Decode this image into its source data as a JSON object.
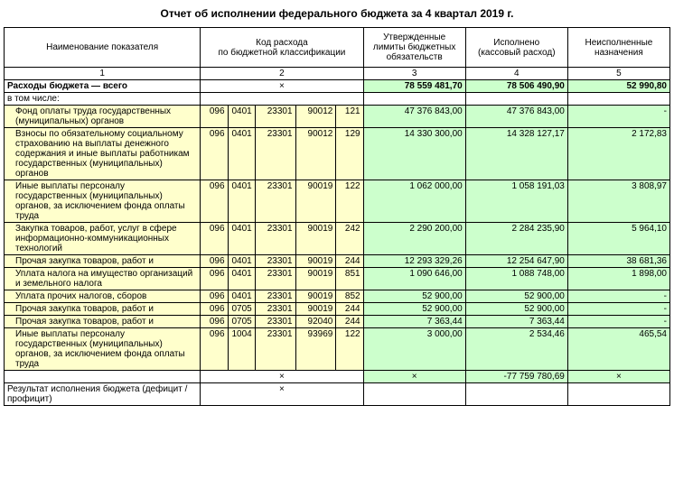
{
  "title": "Отчет об исполнении федерального бюджета за 4 квартал 2019 г.",
  "headers": {
    "name": "Наименование показателя",
    "code": "Код расхода\nпо бюджетной классификации",
    "approved": "Утвержденные лимиты бюджетных обязательств",
    "executed": "Исполнено\n(кассовый расход)",
    "unexecuted": "Неисполненные назначения",
    "c1": "1",
    "c2": "2",
    "c3": "3",
    "c4": "4",
    "c5": "5"
  },
  "total": {
    "label": "Расходы бюджета — всего",
    "x": "×",
    "approved": "78 559 481,70",
    "executed": "78 506 490,90",
    "unexecuted": "52 990,80"
  },
  "including": "в том числе:",
  "rows": [
    {
      "name": "Фонд оплаты труда государственных (муниципальных) органов",
      "c": [
        "096",
        "0401",
        "23301",
        "90012",
        "121"
      ],
      "approved": "47 376 843,00",
      "executed": "47 376 843,00",
      "unexecuted": "-"
    },
    {
      "name": "Взносы по обязательному социальному страхованию на выплаты денежного содержания и иные выплаты работникам государственных (муниципальных) органов",
      "c": [
        "096",
        "0401",
        "23301",
        "90012",
        "129"
      ],
      "approved": "14 330 300,00",
      "executed": "14 328 127,17",
      "unexecuted": "2 172,83"
    },
    {
      "name": "Иные выплаты персоналу государственных (муниципальных) органов, за исключением фонда оплаты труда",
      "c": [
        "096",
        "0401",
        "23301",
        "90019",
        "122"
      ],
      "approved": "1 062 000,00",
      "executed": "1 058 191,03",
      "unexecuted": "3 808,97"
    },
    {
      "name": "Закупка товаров, работ, услуг в сфере информационно-коммуникационных технологий",
      "c": [
        "096",
        "0401",
        "23301",
        "90019",
        "242"
      ],
      "approved": "2 290 200,00",
      "executed": "2 284 235,90",
      "unexecuted": "5 964,10"
    },
    {
      "name": "Прочая закупка товаров, работ и",
      "c": [
        "096",
        "0401",
        "23301",
        "90019",
        "244"
      ],
      "approved": "12 293 329,26",
      "executed": "12 254 647,90",
      "unexecuted": "38 681,36"
    },
    {
      "name": "Уплата налога на имущество организаций и земельного налога",
      "c": [
        "096",
        "0401",
        "23301",
        "90019",
        "851"
      ],
      "approved": "1 090 646,00",
      "executed": "1 088 748,00",
      "unexecuted": "1 898,00"
    },
    {
      "name": "Уплата прочих налогов, сборов",
      "c": [
        "096",
        "0401",
        "23301",
        "90019",
        "852"
      ],
      "approved": "52 900,00",
      "executed": "52 900,00",
      "unexecuted": "-"
    },
    {
      "name": "Прочая закупка товаров, работ и",
      "c": [
        "096",
        "0705",
        "23301",
        "90019",
        "244"
      ],
      "approved": "52 900,00",
      "executed": "52 900,00",
      "unexecuted": "-"
    },
    {
      "name": "Прочая закупка товаров, работ и",
      "c": [
        "096",
        "0705",
        "23301",
        "92040",
        "244"
      ],
      "approved": "7 363,44",
      "executed": "7 363,44",
      "unexecuted": "-"
    },
    {
      "name": "Иные выплаты персоналу государственных (муниципальных) органов, за исключением фонда оплаты труда",
      "c": [
        "096",
        "1004",
        "23301",
        "93969",
        "122"
      ],
      "approved": "3 000,00",
      "executed": "2 534,46",
      "unexecuted": "465,54"
    }
  ],
  "blankrow": {
    "x": "×",
    "executed": "-77 759 780,69"
  },
  "result": {
    "label": "Результат исполнения бюджета (дефицит / профицит)",
    "x": "×"
  },
  "style": {
    "yellow": "#ffffcc",
    "green": "#ccffcc",
    "border": "#000000",
    "font_main": 10,
    "font_title": 12
  }
}
